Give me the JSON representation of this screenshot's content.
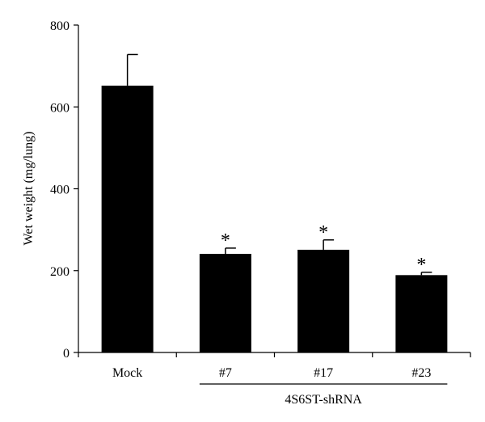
{
  "chart_data": {
    "type": "bar",
    "categories": [
      "Mock",
      "#7",
      "#17",
      "#23"
    ],
    "values": [
      652,
      241,
      251,
      189
    ],
    "errors": [
      76,
      14,
      24,
      7
    ],
    "significance": [
      "",
      "*",
      "*",
      "*"
    ],
    "title": "",
    "xlabel": "",
    "ylabel": "Wet weight (mg/lung)",
    "ylim": [
      0,
      800
    ],
    "yticks": [
      0,
      200,
      400,
      600,
      800
    ],
    "group_label": "4S6ST-shRNA",
    "group_categories": [
      "#7",
      "#17",
      "#23"
    ],
    "bar_color": "#000000",
    "grid": false
  }
}
